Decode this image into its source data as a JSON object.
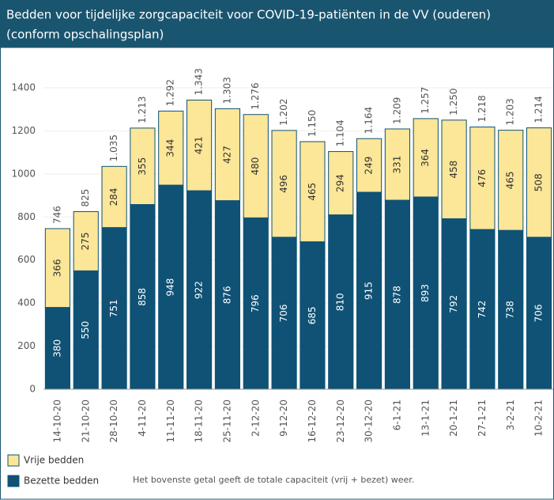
{
  "chart_data": {
    "type": "stacked_bar",
    "title": "Bedden voor tijdelijke zorgcapaciteit voor COVID-19-patiënten in de VV (ouderen)",
    "subtitle": "(conform opschalingsplan)",
    "categories": [
      "14-10-20",
      "21-10-20",
      "28-10-20",
      "4-11-20",
      "11-11-20",
      "18-11-20",
      "25-11-20",
      "2-12-20",
      "9-12-20",
      "16-12-20",
      "23-12-20",
      "30-12-20",
      "6-1-21",
      "13-1-21",
      "20-1-21",
      "27-1-21",
      "3-2-21",
      "10-2-21"
    ],
    "series": [
      {
        "name": "Bezette bedden",
        "color": "#0f5275",
        "values": [
          380,
          550,
          751,
          858,
          948,
          922,
          876,
          796,
          706,
          685,
          810,
          915,
          878,
          893,
          792,
          742,
          738,
          706
        ]
      },
      {
        "name": "Vrije bedden",
        "color": "#fce697",
        "values": [
          366,
          275,
          284,
          355,
          344,
          421,
          427,
          480,
          496,
          465,
          294,
          249,
          331,
          364,
          458,
          476,
          465,
          508
        ]
      }
    ],
    "totals": {
      "values": [
        746,
        825,
        1035,
        1213,
        1292,
        1343,
        1303,
        1276,
        1202,
        1150,
        1104,
        1164,
        1209,
        1257,
        1250,
        1218,
        1203,
        1214
      ],
      "value_labels": [
        "746",
        "825",
        "1.035",
        "1.213",
        "1.292",
        "1.343",
        "1.303",
        "1.276",
        "1.202",
        "1.150",
        "1.104",
        "1.164",
        "1.209",
        "1.257",
        "1.250",
        "1.218",
        "1.203",
        "1.214"
      ]
    },
    "ylim": [
      0,
      1400
    ],
    "yticks": [
      0,
      200,
      400,
      600,
      800,
      1000,
      1200,
      1400
    ],
    "grid": true,
    "note": "Het bovenste getal geeft de totale capaciteit (vrij + bezet) weer."
  }
}
